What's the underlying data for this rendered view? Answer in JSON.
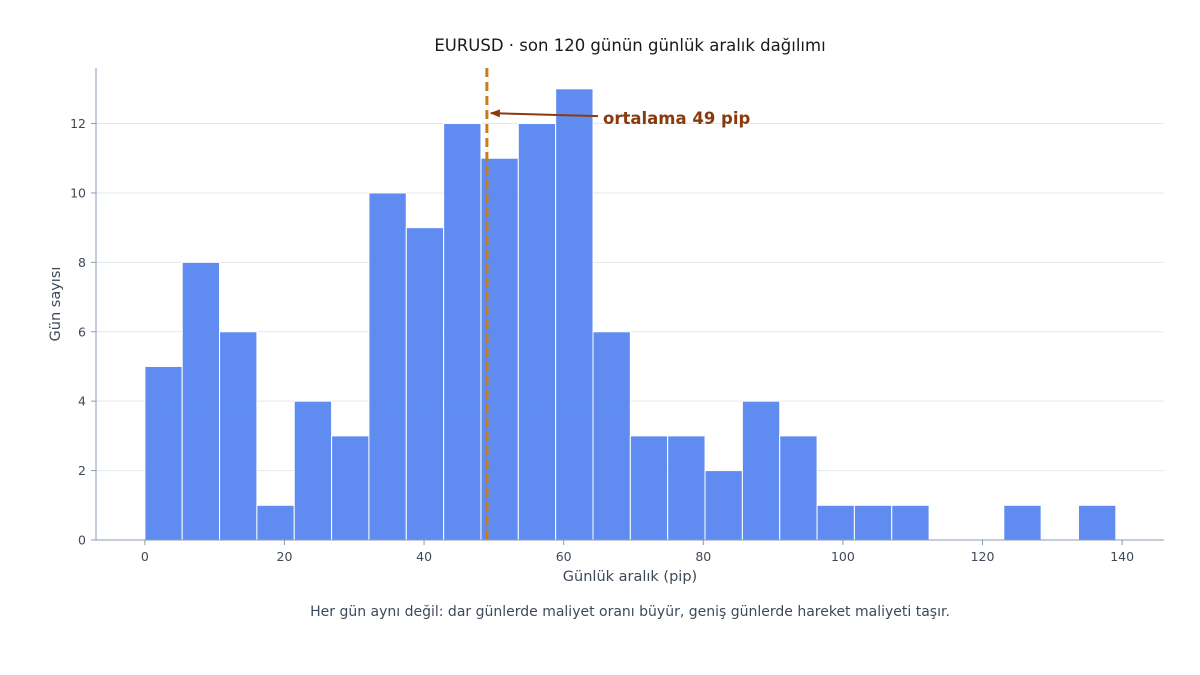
{
  "chart_data": {
    "type": "bar",
    "title": "EURUSD · son 120 günün günlük aralık dağılımı",
    "xlabel": "Günlük aralık (pip)",
    "ylabel": "Gün sayısı",
    "caption": "Her gün aynı değil: dar günlerde maliyet oranı büyür, geniş günlerde hareket maliyeti taşır.",
    "xlim": [
      -7,
      146
    ],
    "ylim": [
      0,
      13.6
    ],
    "xticks": [
      0,
      20,
      40,
      60,
      80,
      100,
      120,
      140
    ],
    "yticks": [
      0,
      2,
      4,
      6,
      8,
      10,
      12
    ],
    "bin_edges": [
      0,
      5.35,
      10.7,
      16.05,
      21.4,
      26.75,
      32.1,
      37.45,
      42.8,
      48.15,
      53.5,
      58.85,
      64.2,
      69.55,
      74.9,
      80.25,
      85.6,
      90.95,
      96.3,
      101.65,
      107.0,
      112.35,
      117.7,
      123.05,
      128.4,
      133.75,
      139.1
    ],
    "values": [
      5,
      8,
      6,
      1,
      4,
      3,
      10,
      9,
      12,
      11,
      12,
      13,
      6,
      3,
      3,
      2,
      4,
      3,
      1,
      1,
      1,
      0,
      0,
      1,
      0,
      1
    ],
    "mean": 49,
    "mean_label": "ortalama 49 pip",
    "grid": "horizontal",
    "colors": {
      "bar": "#4f7ff0",
      "bar_edge": "#ffffff",
      "mean_line": "#cc7a1a",
      "annotation": "#8a3b0e",
      "grid": "#e3e8ee",
      "axis": "#8a9bb0"
    }
  }
}
